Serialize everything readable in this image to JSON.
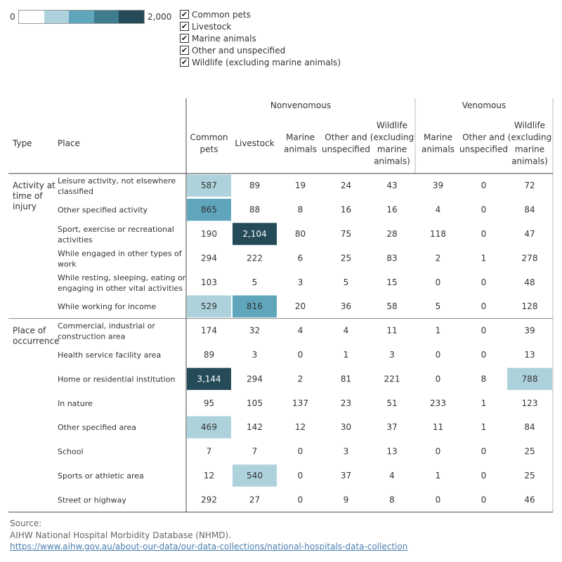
{
  "legend": {
    "min_label": "0",
    "max_label": "2,000",
    "colors": [
      "#ffffff",
      "#aed2dc",
      "#5fa6bd",
      "#3f7c8e",
      "#244b57"
    ]
  },
  "filters": [
    {
      "label": "Common pets",
      "checked": true
    },
    {
      "label": "Livestock",
      "checked": true
    },
    {
      "label": "Marine animals",
      "checked": true
    },
    {
      "label": "Other and unspecified",
      "checked": true
    },
    {
      "label": "Wildlife (excluding marine animals)",
      "checked": true
    }
  ],
  "chart_data": {
    "type": "heatmap",
    "row_header_type": "Type",
    "row_header_place": "Place",
    "groups": [
      {
        "name": "Nonvenomous",
        "columns": [
          [
            "Common",
            "pets"
          ],
          [
            "Livestock"
          ],
          [
            "Marine",
            "animals"
          ],
          [
            "Other and",
            "unspecified"
          ],
          [
            "Wildlife",
            "(excluding",
            "marine",
            "animals)"
          ]
        ]
      },
      {
        "name": "Venomous",
        "columns": [
          [
            "Marine",
            "animals"
          ],
          [
            "Other and",
            "unspecified"
          ],
          [
            "Wildlife",
            "(excluding",
            "marine",
            "animals)"
          ]
        ]
      }
    ],
    "color_scale": {
      "min": 0,
      "max": 2000
    },
    "sections": [
      {
        "type": [
          "Activity at",
          "time of",
          "injury"
        ],
        "rows": [
          {
            "place": [
              "Leisure activity, not elsewhere",
              "classified"
            ],
            "values": [
              587,
              89,
              19,
              24,
              43,
              39,
              0,
              72
            ]
          },
          {
            "place": [
              "Other specified activity"
            ],
            "values": [
              865,
              88,
              8,
              16,
              16,
              4,
              0,
              84
            ]
          },
          {
            "place": [
              "Sport, exercise or recreational",
              "activities"
            ],
            "values": [
              190,
              2104,
              80,
              75,
              28,
              118,
              0,
              47
            ]
          },
          {
            "place": [
              "While engaged in other types of",
              "work"
            ],
            "values": [
              294,
              222,
              6,
              25,
              83,
              2,
              1,
              278
            ]
          },
          {
            "place": [
              "While resting, sleeping, eating or",
              "engaging in other vital activities"
            ],
            "values": [
              103,
              5,
              3,
              5,
              15,
              0,
              0,
              48
            ]
          },
          {
            "place": [
              "While working for income"
            ],
            "values": [
              529,
              816,
              20,
              36,
              58,
              5,
              0,
              128
            ]
          }
        ]
      },
      {
        "type": [
          "Place of",
          "occurrence"
        ],
        "rows": [
          {
            "place": [
              "Commercial, industrial or",
              "construction area"
            ],
            "values": [
              174,
              32,
              4,
              4,
              11,
              1,
              0,
              39
            ]
          },
          {
            "place": [
              "Health service facility area"
            ],
            "values": [
              89,
              3,
              0,
              1,
              3,
              0,
              0,
              13
            ]
          },
          {
            "place": [
              "Home or residential institution"
            ],
            "values": [
              3144,
              294,
              2,
              81,
              221,
              0,
              8,
              788
            ]
          },
          {
            "place": [
              "In nature"
            ],
            "values": [
              95,
              105,
              137,
              23,
              51,
              233,
              1,
              123
            ]
          },
          {
            "place": [
              "Other specified area"
            ],
            "values": [
              469,
              142,
              12,
              30,
              37,
              11,
              1,
              84
            ]
          },
          {
            "place": [
              "School"
            ],
            "values": [
              7,
              7,
              0,
              3,
              13,
              0,
              0,
              25
            ]
          },
          {
            "place": [
              "Sports or athletic area"
            ],
            "values": [
              12,
              540,
              0,
              37,
              4,
              1,
              0,
              25
            ]
          },
          {
            "place": [
              "Street or highway"
            ],
            "values": [
              292,
              27,
              0,
              9,
              8,
              0,
              0,
              46
            ]
          }
        ]
      }
    ]
  },
  "source": {
    "label": "Source:",
    "text": "AIHW National Hospital Morbidity Database (NHMD).",
    "link": "https://www.aihw.gov.au/about-our-data/our-data-collections/national-hospitals-data-collection"
  }
}
